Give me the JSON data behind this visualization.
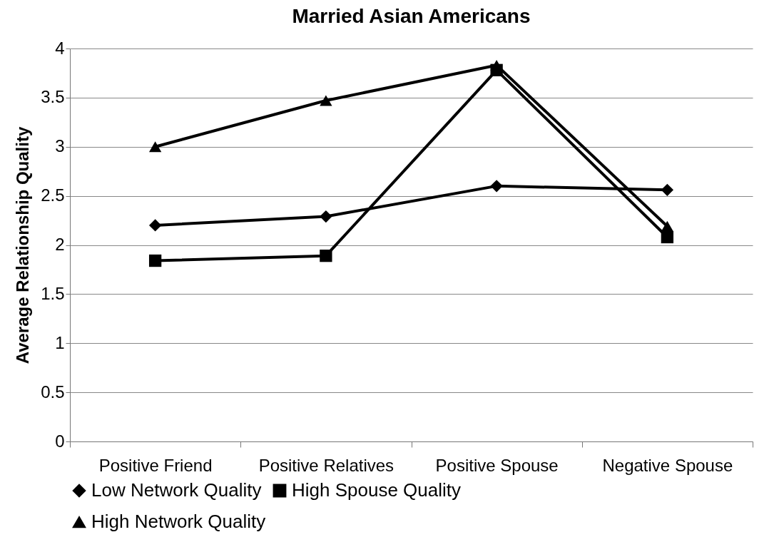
{
  "chart_data": {
    "type": "line",
    "title": "Married Asian Americans",
    "ylabel": "Average Relationship Quality",
    "categories": [
      "Positive Friend",
      "Positive Relatives",
      "Positive Spouse",
      "Negative Spouse"
    ],
    "series": [
      {
        "name": "Low Network Quality",
        "color": "#000000",
        "marker": "diamond",
        "values": [
          2.2,
          2.29,
          2.6,
          2.56
        ]
      },
      {
        "name": "High Spouse Quality",
        "color": "#000000",
        "marker": "square",
        "values": [
          1.84,
          1.89,
          3.78,
          2.08
        ]
      },
      {
        "name": "High Network Quality",
        "color": "#000000",
        "marker": "triangle",
        "values": [
          3.0,
          3.47,
          3.83,
          2.19
        ]
      }
    ],
    "ylim": [
      0,
      4
    ],
    "yticks": [
      0,
      0.5,
      1,
      1.5,
      2,
      2.5,
      3,
      3.5,
      4
    ],
    "grid": "y",
    "legend": "bottom",
    "line_style": "solid"
  }
}
